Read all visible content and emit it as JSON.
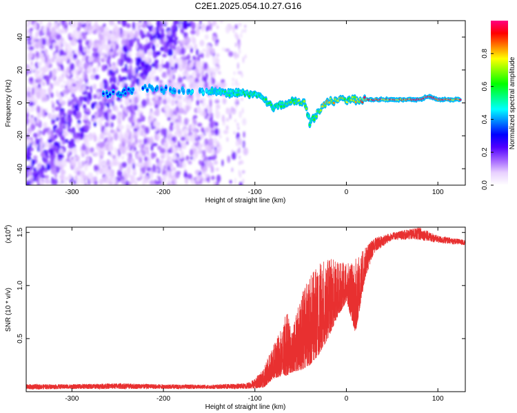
{
  "title": "C2E1.2025.054.10.27.G16",
  "chart_data": [
    {
      "type": "heatmap",
      "xlabel": "Height of straight line (km)",
      "ylabel": "Frequency (Hz)",
      "xlim": [
        -350,
        130
      ],
      "ylim": [
        -50,
        50
      ],
      "x_ticks": [
        -300,
        -200,
        -100,
        0,
        100
      ],
      "y_ticks": [
        -40,
        -20,
        0,
        20,
        40
      ],
      "colorbar": {
        "label": "Normalized spectral amplitude",
        "range": [
          0.0,
          1.0
        ],
        "ticks": [
          0.0,
          0.2,
          0.4,
          0.6,
          0.8
        ],
        "colors": [
          "#ffffff",
          "#e8d0ff",
          "#a060ff",
          "#5000ff",
          "#0000ff",
          "#0080ff",
          "#00ffff",
          "#00ff80",
          "#00ff00",
          "#80ff00",
          "#ffff00",
          "#ff8000",
          "#ff0000",
          "#ff0080"
        ]
      },
      "ridge": [
        {
          "x": -270,
          "y": 4,
          "amp": 0.3
        },
        {
          "x": -215,
          "y": 9,
          "amp": 0.35
        },
        {
          "x": -180,
          "y": 7,
          "amp": 0.4
        },
        {
          "x": -160,
          "y": 7,
          "amp": 0.45
        },
        {
          "x": -130,
          "y": 6,
          "amp": 0.5
        },
        {
          "x": -110,
          "y": 6,
          "amp": 0.55
        },
        {
          "x": -95,
          "y": 4,
          "amp": 0.55
        },
        {
          "x": -80,
          "y": -3,
          "amp": 0.55
        },
        {
          "x": -60,
          "y": 1,
          "amp": 0.6
        },
        {
          "x": -45,
          "y": 0,
          "amp": 0.7
        },
        {
          "x": -40,
          "y": -12,
          "amp": 0.5
        },
        {
          "x": -20,
          "y": 1,
          "amp": 0.8
        },
        {
          "x": 0,
          "y": 2,
          "amp": 0.7
        },
        {
          "x": 20,
          "y": 2,
          "amp": 0.85
        },
        {
          "x": 50,
          "y": 2,
          "amp": 0.9
        },
        {
          "x": 80,
          "y": 2,
          "amp": 0.9
        },
        {
          "x": 90,
          "y": 4,
          "amp": 0.95
        },
        {
          "x": 100,
          "y": 2,
          "amp": 0.9
        },
        {
          "x": 125,
          "y": 2,
          "amp": 0.85
        }
      ]
    },
    {
      "type": "line",
      "xlabel": "Height of straight line (km)",
      "ylabel": "SNR (10 * v/v)",
      "y_multiplier": "(x10",
      "y_multiplier_exp": "4",
      "y_multiplier_close": ")",
      "xlim": [
        -350,
        130
      ],
      "ylim": [
        0,
        15500
      ],
      "x_ticks": [
        -300,
        -200,
        -100,
        0,
        100
      ],
      "y_ticks": [
        5000,
        10000,
        15000
      ],
      "y_tick_labels": [
        "0.5",
        "1.0",
        "1.5"
      ],
      "line_color": "#e83030",
      "envelope": [
        {
          "x": -350,
          "lo": 200,
          "hi": 700
        },
        {
          "x": -300,
          "lo": 250,
          "hi": 700
        },
        {
          "x": -250,
          "lo": 250,
          "hi": 800
        },
        {
          "x": -200,
          "lo": 250,
          "hi": 700
        },
        {
          "x": -150,
          "lo": 250,
          "hi": 650
        },
        {
          "x": -110,
          "lo": 250,
          "hi": 800
        },
        {
          "x": -100,
          "lo": 300,
          "hi": 1200
        },
        {
          "x": -90,
          "lo": 400,
          "hi": 2300
        },
        {
          "x": -80,
          "lo": 1200,
          "hi": 4500
        },
        {
          "x": -70,
          "lo": 1500,
          "hi": 6000
        },
        {
          "x": -65,
          "lo": 1500,
          "hi": 7800
        },
        {
          "x": -60,
          "lo": 1800,
          "hi": 5500
        },
        {
          "x": -50,
          "lo": 2000,
          "hi": 9000
        },
        {
          "x": -40,
          "lo": 2500,
          "hi": 11000
        },
        {
          "x": -30,
          "lo": 3500,
          "hi": 12000
        },
        {
          "x": -20,
          "lo": 5000,
          "hi": 12500
        },
        {
          "x": -10,
          "lo": 7000,
          "hi": 12500
        },
        {
          "x": 0,
          "lo": 8500,
          "hi": 12000
        },
        {
          "x": 10,
          "lo": 5500,
          "hi": 12500
        },
        {
          "x": 20,
          "lo": 10500,
          "hi": 13500
        },
        {
          "x": 30,
          "lo": 13000,
          "hi": 14500
        },
        {
          "x": 50,
          "lo": 14300,
          "hi": 15000
        },
        {
          "x": 80,
          "lo": 14300,
          "hi": 15500
        },
        {
          "x": 100,
          "lo": 14000,
          "hi": 14700
        },
        {
          "x": 130,
          "lo": 13800,
          "hi": 14300
        }
      ]
    }
  ]
}
